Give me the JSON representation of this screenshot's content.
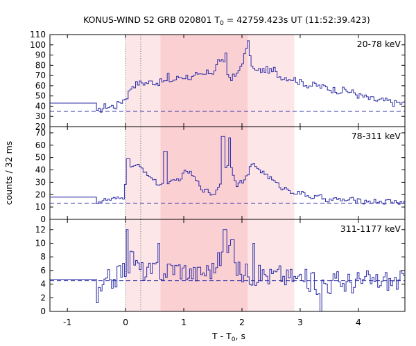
{
  "title": "KONUS-WIND S2 GRB 020801 T",
  "title_sub": "0",
  "title_rest": " = 42759.423s UT (11:52:39.423)",
  "xlabel": "T - T",
  "xlabel_sub": "0",
  "xlabel_rest": ", s",
  "ylabel": "counts / 32 ms",
  "colors": {
    "line": "#2b2ba6",
    "bg": "#66666a",
    "shade_light": "#fde6e7",
    "shade_dark": "#fbd0d3"
  },
  "chart_data": {
    "type": "line",
    "x_range": [
      -1.3,
      4.8
    ],
    "x_ticks": [
      -1,
      0,
      1,
      2,
      3,
      4
    ],
    "x_tick_labels": [
      "-1",
      "0",
      "1",
      "2",
      "3",
      "4"
    ],
    "vlines": [
      0.0,
      0.26
    ],
    "shaded_regions": [
      {
        "x": [
          0.0,
          0.6
        ],
        "shade": "light"
      },
      {
        "x": [
          0.6,
          2.1
        ],
        "shade": "dark"
      },
      {
        "x": [
          2.1,
          2.9
        ],
        "shade": "light"
      }
    ],
    "panels": [
      {
        "name": "20-78 keV",
        "ylim": [
          20,
          110
        ],
        "yticks": [
          20,
          30,
          40,
          50,
          60,
          70,
          80,
          90,
          100,
          110
        ],
        "background": 35,
        "pre_level": 43,
        "pre_until": -0.5,
        "anchors": [
          [
            -0.5,
            32
          ],
          [
            -0.4,
            40
          ],
          [
            -0.2,
            40
          ],
          [
            0.0,
            50
          ],
          [
            0.1,
            62
          ],
          [
            0.3,
            63
          ],
          [
            0.5,
            64
          ],
          [
            0.7,
            64
          ],
          [
            1.0,
            70
          ],
          [
            1.2,
            67
          ],
          [
            1.5,
            75
          ],
          [
            1.6,
            88
          ],
          [
            1.75,
            68
          ],
          [
            1.9,
            70
          ],
          [
            2.05,
            96
          ],
          [
            2.2,
            73
          ],
          [
            2.4,
            76
          ],
          [
            2.6,
            70
          ],
          [
            2.85,
            68
          ],
          [
            3.0,
            63
          ],
          [
            3.4,
            58
          ],
          [
            3.8,
            55
          ],
          [
            4.2,
            46
          ],
          [
            4.8,
            42
          ]
        ],
        "peaks": [
          [
            1.7,
            92
          ],
          [
            2.08,
            104
          ],
          [
            1.2,
            73
          ],
          [
            2.55,
            78
          ],
          [
            0.72,
            72
          ]
        ],
        "noise": 5
      },
      {
        "name": "78-311 keV",
        "ylim": [
          0,
          75
        ],
        "yticks": [
          0,
          10,
          20,
          30,
          40,
          50,
          60,
          70
        ],
        "background": 13,
        "pre_level": 18,
        "pre_until": -0.5,
        "anchors": [
          [
            -0.5,
            15
          ],
          [
            -0.1,
            16
          ],
          [
            -0.05,
            18
          ],
          [
            0.0,
            45
          ],
          [
            0.2,
            42
          ],
          [
            0.35,
            38
          ],
          [
            0.5,
            29
          ],
          [
            0.7,
            27
          ],
          [
            0.9,
            33
          ],
          [
            1.05,
            40
          ],
          [
            1.2,
            30
          ],
          [
            1.35,
            23
          ],
          [
            1.5,
            20
          ],
          [
            1.6,
            30
          ],
          [
            1.75,
            48
          ],
          [
            1.9,
            28
          ],
          [
            2.05,
            33
          ],
          [
            2.15,
            45
          ],
          [
            2.4,
            36
          ],
          [
            2.6,
            27
          ],
          [
            2.9,
            22
          ],
          [
            3.2,
            18
          ],
          [
            3.5,
            16
          ],
          [
            4.0,
            15
          ],
          [
            4.8,
            14
          ]
        ],
        "peaks": [
          [
            1.66,
            67
          ],
          [
            1.77,
            66
          ],
          [
            0.67,
            55
          ],
          [
            2.18,
            45
          ],
          [
            0.03,
            49
          ]
        ],
        "noise": 3
      },
      {
        "name": "311-1177 keV",
        "ylim": [
          0,
          13.5
        ],
        "yticks": [
          0,
          2,
          4,
          6,
          8,
          10,
          12
        ],
        "background": 4.5,
        "pre_level": 4.7,
        "pre_until": -0.5,
        "anchors": [
          [
            -0.5,
            2.0
          ],
          [
            -0.3,
            4.5
          ],
          [
            0.0,
            6.5
          ],
          [
            0.1,
            8.5
          ],
          [
            0.2,
            6
          ],
          [
            0.4,
            5.5
          ],
          [
            0.8,
            6.5
          ],
          [
            1.2,
            5.5
          ],
          [
            1.5,
            6.5
          ],
          [
            1.7,
            9
          ],
          [
            1.9,
            6
          ],
          [
            2.3,
            5.5
          ],
          [
            2.8,
            5
          ],
          [
            3.3,
            4.3
          ],
          [
            3.9,
            4.3
          ],
          [
            4.8,
            4.5
          ]
        ],
        "peaks": [
          [
            0.02,
            12
          ],
          [
            1.69,
            12
          ],
          [
            0.55,
            10
          ],
          [
            2.18,
            10
          ],
          [
            1.82,
            10.5
          ],
          [
            3.35,
            0
          ]
        ],
        "noise": 2.2
      }
    ]
  }
}
